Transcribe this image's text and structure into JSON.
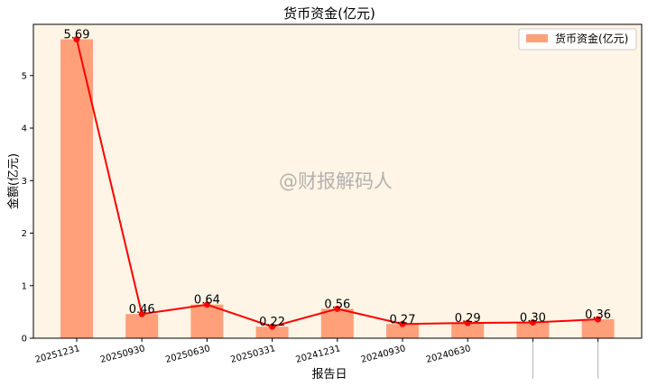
{
  "chart_data": {
    "type": "bar",
    "title": "货币资金(亿元)",
    "xlabel": "报告日",
    "ylabel": "金额(亿元)",
    "categories": [
      "20251231",
      "20250930",
      "20250630",
      "20250331",
      "20241231",
      "20240930",
      "20240630",
      "",
      ""
    ],
    "x_tick_labels": [
      "20251231",
      "20250930",
      "20250630",
      "20250331",
      "20241231",
      "20240930",
      "20240630"
    ],
    "series": [
      {
        "name": "货币资金(亿元)",
        "type": "bar",
        "values": [
          5.69,
          0.46,
          0.64,
          0.22,
          0.56,
          0.27,
          0.29,
          0.3,
          0.36
        ]
      },
      {
        "type": "line",
        "values": [
          5.69,
          0.46,
          0.64,
          0.22,
          0.56,
          0.27,
          0.29,
          0.3,
          0.36
        ]
      }
    ],
    "data_labels": [
      "5.69",
      "0.46",
      "0.64",
      "0.22",
      "0.56",
      "0.27",
      "0.29",
      "0.30",
      "0.36"
    ],
    "ylim": [
      0,
      5.975
    ],
    "y_ticks": [
      0,
      1,
      2,
      3,
      4,
      5
    ],
    "legend_position": "top-right",
    "grid": false,
    "watermark": "@财报解码人",
    "colors": {
      "bar": "#FFA07A",
      "line": "#FF0000",
      "marker": "#FF0000",
      "plot_background": "#FFF5E6",
      "watermark": "#9a9a9a"
    }
  }
}
